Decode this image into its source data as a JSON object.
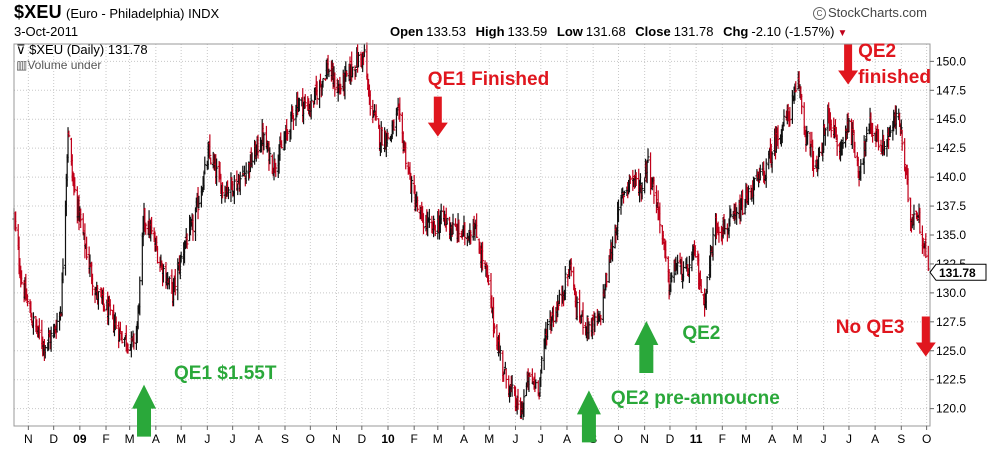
{
  "header": {
    "symbol": "$XEU",
    "name": "(Euro - Philadelphia) INDX",
    "date": "3-Oct-2011",
    "credit": "StockCharts.com",
    "open_label": "Open",
    "open": "133.53",
    "high_label": "High",
    "high": "133.59",
    "low_label": "Low",
    "low": "131.68",
    "close_label": "Close",
    "close": "131.78",
    "chg_label": "Chg",
    "chg": "-2.10 (-1.57%)"
  },
  "legend": {
    "series_label": "$XEU (Daily) 131.78",
    "volume_label": "Volume under"
  },
  "colors": {
    "up": "#111111",
    "down": "#c0001a",
    "grid": "#c8c8c8",
    "annotation_red": "#e0161e",
    "annotation_green": "#2aa83a"
  },
  "annotations": [
    {
      "text": "QE1 Finished",
      "color": "red",
      "arrow": "down",
      "date": "2010-03-01",
      "value": 143.5
    },
    {
      "text": "QE2 finished",
      "color": "red",
      "arrow": "down",
      "date": "2011-06-30",
      "value": 148.0
    },
    {
      "text": "No QE3",
      "color": "red",
      "arrow": "down",
      "date": "2011-09-30",
      "value": 124.5
    },
    {
      "text": "QE1 $1.55T",
      "color": "green",
      "arrow": "up",
      "date": "2009-03-18",
      "value": 120.0
    },
    {
      "text": "QE2 pre-annoucne",
      "color": "green",
      "arrow": "up",
      "date": "2010-08-27",
      "value": 119.5
    },
    {
      "text": "QE2",
      "color": "green",
      "arrow": "up",
      "date": "2010-11-03",
      "value": 125.5
    }
  ],
  "chart_data": {
    "type": "ohlc",
    "x_range": [
      "2008-10-15",
      "2011-10-05"
    ],
    "ylim": [
      118.5,
      151.5
    ],
    "y_ticks": [
      120.0,
      122.5,
      125.0,
      127.5,
      130.0,
      132.5,
      135.0,
      137.5,
      140.0,
      142.5,
      145.0,
      147.5,
      150.0
    ],
    "x_ticks": [
      {
        "label": "N",
        "date": "2008-11-01"
      },
      {
        "label": "D",
        "date": "2008-12-01"
      },
      {
        "label": "09",
        "date": "2009-01-01",
        "bold": true
      },
      {
        "label": "F",
        "date": "2009-02-01"
      },
      {
        "label": "M",
        "date": "2009-03-01"
      },
      {
        "label": "A",
        "date": "2009-04-01"
      },
      {
        "label": "M",
        "date": "2009-05-01"
      },
      {
        "label": "J",
        "date": "2009-06-01"
      },
      {
        "label": "J",
        "date": "2009-07-01"
      },
      {
        "label": "A",
        "date": "2009-08-01"
      },
      {
        "label": "S",
        "date": "2009-09-01"
      },
      {
        "label": "O",
        "date": "2009-10-01"
      },
      {
        "label": "N",
        "date": "2009-11-01"
      },
      {
        "label": "D",
        "date": "2009-12-01"
      },
      {
        "label": "10",
        "date": "2010-01-01",
        "bold": true
      },
      {
        "label": "F",
        "date": "2010-02-01"
      },
      {
        "label": "M",
        "date": "2010-03-01"
      },
      {
        "label": "A",
        "date": "2010-04-01"
      },
      {
        "label": "M",
        "date": "2010-05-01"
      },
      {
        "label": "J",
        "date": "2010-06-01"
      },
      {
        "label": "J",
        "date": "2010-07-01"
      },
      {
        "label": "A",
        "date": "2010-08-01"
      },
      {
        "label": "S",
        "date": "2010-09-01"
      },
      {
        "label": "O",
        "date": "2010-10-01"
      },
      {
        "label": "N",
        "date": "2010-11-01"
      },
      {
        "label": "D",
        "date": "2010-12-01"
      },
      {
        "label": "11",
        "date": "2011-01-01",
        "bold": true
      },
      {
        "label": "F",
        "date": "2011-02-01"
      },
      {
        "label": "M",
        "date": "2011-03-01"
      },
      {
        "label": "A",
        "date": "2011-04-01"
      },
      {
        "label": "M",
        "date": "2011-05-01"
      },
      {
        "label": "J",
        "date": "2011-06-01"
      },
      {
        "label": "J",
        "date": "2011-07-01"
      },
      {
        "label": "A",
        "date": "2011-08-01"
      },
      {
        "label": "S",
        "date": "2011-09-01"
      },
      {
        "label": "O",
        "date": "2011-10-01"
      }
    ],
    "last_value": "131.78",
    "series": [
      {
        "anchors": [
          [
            "2008-10-15",
            136.5
          ],
          [
            "2008-10-24",
            131.0
          ],
          [
            "2008-11-06",
            127.5
          ],
          [
            "2008-11-20",
            125.5
          ],
          [
            "2008-12-01",
            126.5
          ],
          [
            "2008-12-10",
            128.8
          ],
          [
            "2008-12-18",
            144.0
          ],
          [
            "2008-12-24",
            139.5
          ],
          [
            "2009-01-06",
            134.5
          ],
          [
            "2009-01-20",
            130.0
          ],
          [
            "2009-02-04",
            128.3
          ],
          [
            "2009-02-18",
            126.5
          ],
          [
            "2009-03-04",
            125.5
          ],
          [
            "2009-03-10",
            127.0
          ],
          [
            "2009-03-18",
            136.5
          ],
          [
            "2009-03-25",
            135.5
          ],
          [
            "2009-04-07",
            132.5
          ],
          [
            "2009-04-21",
            130.0
          ],
          [
            "2009-05-06",
            134.5
          ],
          [
            "2009-05-14",
            135.5
          ],
          [
            "2009-06-03",
            142.0
          ],
          [
            "2009-06-19",
            139.0
          ],
          [
            "2009-07-08",
            139.5
          ],
          [
            "2009-07-24",
            141.5
          ],
          [
            "2009-08-05",
            143.5
          ],
          [
            "2009-08-18",
            141.0
          ],
          [
            "2009-08-31",
            143.0
          ],
          [
            "2009-09-15",
            146.5
          ],
          [
            "2009-10-01",
            146.0
          ],
          [
            "2009-10-21",
            149.5
          ],
          [
            "2009-11-03",
            147.5
          ],
          [
            "2009-11-25",
            150.0
          ],
          [
            "2009-12-04",
            150.5
          ],
          [
            "2009-12-09",
            147.0
          ],
          [
            "2009-12-22",
            143.5
          ],
          [
            "2010-01-04",
            143.5
          ],
          [
            "2010-01-13",
            145.5
          ],
          [
            "2010-01-29",
            139.0
          ],
          [
            "2010-02-08",
            136.5
          ],
          [
            "2010-02-22",
            135.5
          ],
          [
            "2010-03-08",
            136.5
          ],
          [
            "2010-03-18",
            135.5
          ],
          [
            "2010-04-05",
            135.0
          ],
          [
            "2010-04-12",
            136.0
          ],
          [
            "2010-04-28",
            131.5
          ],
          [
            "2010-05-07",
            127.0
          ],
          [
            "2010-05-19",
            123.0
          ],
          [
            "2010-06-07",
            119.5
          ],
          [
            "2010-06-16",
            122.5
          ],
          [
            "2010-06-29",
            122.0
          ],
          [
            "2010-07-08",
            127.0
          ],
          [
            "2010-07-22",
            129.0
          ],
          [
            "2010-08-06",
            132.5
          ],
          [
            "2010-08-12",
            128.5
          ],
          [
            "2010-08-27",
            127.0
          ],
          [
            "2010-09-08",
            127.5
          ],
          [
            "2010-09-22",
            133.5
          ],
          [
            "2010-10-06",
            138.5
          ],
          [
            "2010-10-15",
            140.0
          ],
          [
            "2010-10-29",
            139.0
          ],
          [
            "2010-11-04",
            141.5
          ],
          [
            "2010-11-19",
            136.5
          ],
          [
            "2010-11-30",
            130.5
          ],
          [
            "2010-12-08",
            132.5
          ],
          [
            "2010-12-20",
            131.5
          ],
          [
            "2010-12-31",
            133.5
          ],
          [
            "2011-01-10",
            129.0
          ],
          [
            "2011-01-24",
            136.0
          ],
          [
            "2011-02-04",
            135.5
          ],
          [
            "2011-02-18",
            136.5
          ],
          [
            "2011-03-08",
            139.0
          ],
          [
            "2011-03-24",
            140.5
          ],
          [
            "2011-04-07",
            143.5
          ],
          [
            "2011-04-21",
            145.5
          ],
          [
            "2011-05-03",
            148.0
          ],
          [
            "2011-05-10",
            144.0
          ],
          [
            "2011-05-24",
            140.5
          ],
          [
            "2011-06-07",
            145.5
          ],
          [
            "2011-06-20",
            142.0
          ],
          [
            "2011-07-01",
            145.0
          ],
          [
            "2011-07-13",
            140.5
          ],
          [
            "2011-07-26",
            144.5
          ],
          [
            "2011-08-10",
            142.5
          ],
          [
            "2011-08-29",
            145.5
          ],
          [
            "2011-09-12",
            136.5
          ],
          [
            "2011-09-20",
            137.0
          ],
          [
            "2011-09-30",
            133.5
          ],
          [
            "2011-10-03",
            131.78
          ]
        ]
      }
    ]
  }
}
